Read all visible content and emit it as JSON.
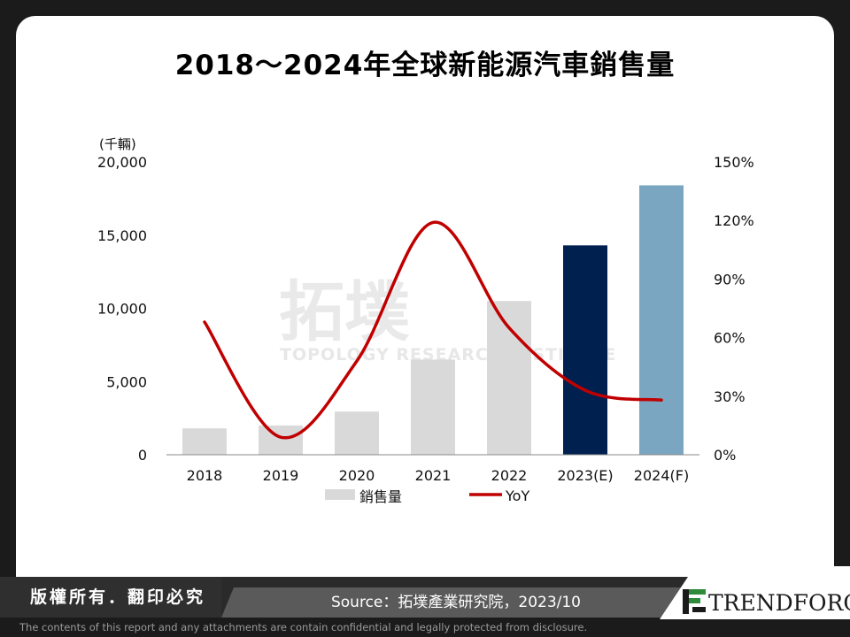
{
  "chart_data": {
    "type": "bar",
    "title": "2018～2024年全球新能源汽車銷售量",
    "y_unit": "(千輛)",
    "categories": [
      "2018",
      "2019",
      "2020",
      "2021",
      "2022",
      "2023(E)",
      "2024(F)"
    ],
    "series": [
      {
        "name": "銷售量",
        "type": "bar",
        "axis": "left",
        "values": [
          1800,
          2000,
          2950,
          6500,
          10500,
          14300,
          18400
        ],
        "colors": [
          "#d9d9d9",
          "#d9d9d9",
          "#d9d9d9",
          "#d9d9d9",
          "#d9d9d9",
          "#002050",
          "#7aa6c2"
        ]
      },
      {
        "name": "YoY",
        "type": "line",
        "axis": "right",
        "values": [
          68,
          9,
          48,
          119,
          65,
          33,
          28
        ],
        "color": "#c00000"
      }
    ],
    "ylim_left": [
      0,
      20000
    ],
    "yticks_left": [
      "0",
      "5,000",
      "10,000",
      "15,000",
      "20,000"
    ],
    "ylim_right": [
      0,
      150
    ],
    "yticks_right": [
      "0%",
      "30%",
      "60%",
      "90%",
      "120%",
      "150%"
    ],
    "grid": false,
    "legend_position": "bottom"
  },
  "watermark": {
    "main": "拓墣",
    "sub": "TOPOLOGY RESEARCH INSTITUTE"
  },
  "footer": {
    "rights": "版權所有．翻印必究",
    "source": "Source：拓墣產業研究院，2023/10",
    "brand": "TRENDFORCE",
    "disclaimer": "The contents of this report and any attachments are contain confidential and legally protected from disclosure."
  },
  "colors": {
    "accent_red": "#c00000",
    "bar_gray": "#d9d9d9",
    "bar_navy": "#002050",
    "bar_blue": "#7aa6c2",
    "logo_green": "#2e8b3a"
  }
}
